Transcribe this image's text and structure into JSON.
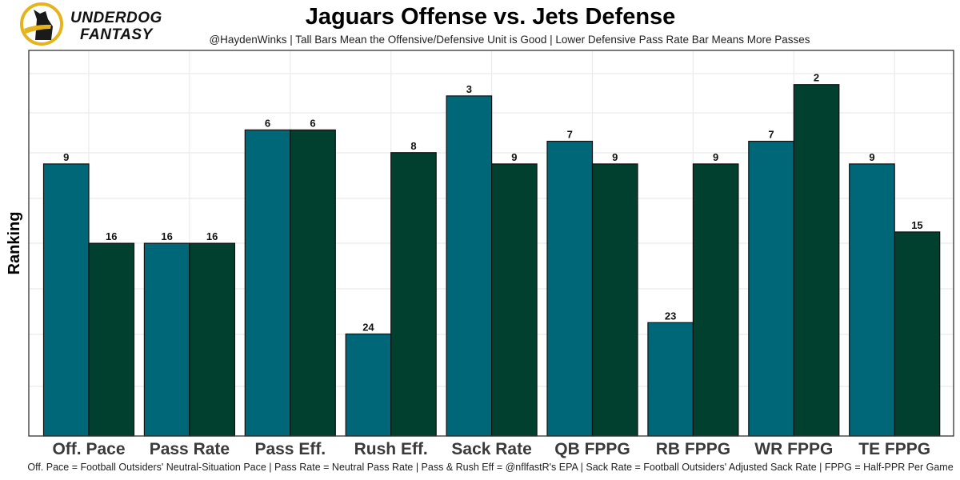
{
  "logo": {
    "line1": "UNDERDOG",
    "line2": "FANTASY",
    "ring_color": "#E5B31C",
    "dog_color": "#1a1a1a"
  },
  "chart_data": {
    "type": "bar",
    "title": "Jaguars Offense vs. Jets Defense",
    "subtitle": "@HaydenWinks | Tall Bars Mean the Offensive/Defensive Unit is Good | Lower Defensive Pass Rate Bar Means More Passes",
    "caption": "Off. Pace = Football Outsiders' Neutral-Situation Pace | Pass Rate = Neutral Pass Rate | Pass & Rush Eff = @nflfastR's EPA | Sack Rate = Football Outsiders' Adjusted Sack Rate | FPPG = Half-PPR Per Game",
    "xlabel": "",
    "ylabel": "Ranking",
    "y_axis_note": "rank 1 = tallest bar; axis reversed, no tick labels shown",
    "rank_range": [
      1,
      32
    ],
    "grid": true,
    "legend": "none",
    "categories": [
      "Off. Pace",
      "Pass Rate",
      "Pass Eff.",
      "Rush Eff.",
      "Sack Rate",
      "QB FPPG",
      "RB FPPG",
      "WR FPPG",
      "TE FPPG"
    ],
    "series": [
      {
        "name": "Jaguars Offense",
        "color": "#006778",
        "values": [
          9,
          16,
          6,
          24,
          3,
          7,
          23,
          7,
          9
        ]
      },
      {
        "name": "Jets Defense",
        "color": "#013F2F",
        "values": [
          16,
          16,
          6,
          8,
          9,
          9,
          9,
          2,
          15
        ]
      }
    ]
  }
}
